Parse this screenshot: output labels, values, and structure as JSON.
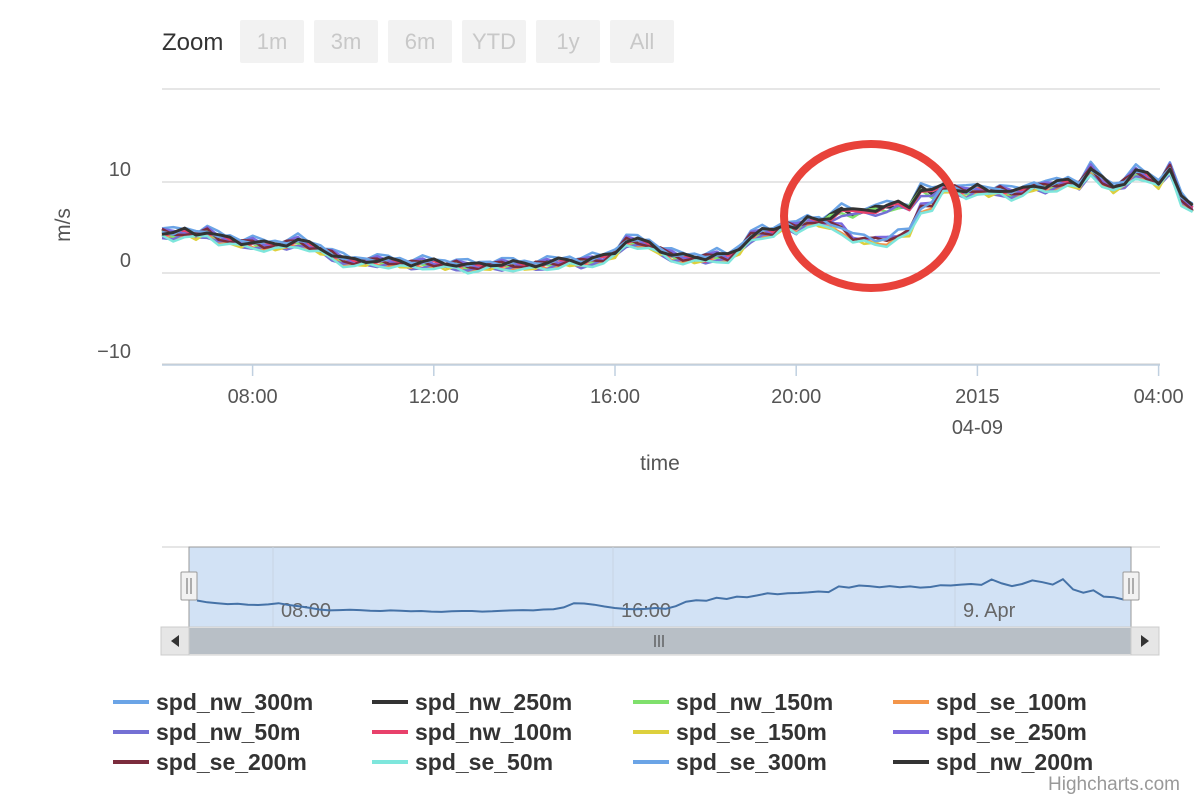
{
  "zoom": {
    "label": "Zoom",
    "buttons": [
      "1m",
      "3m",
      "6m",
      "YTD",
      "1y",
      "All"
    ]
  },
  "credits": "Highcharts.com",
  "colors": {
    "annotation_circle": "#e8423a",
    "navigator_fill": "#d2e2f5",
    "navigator_line": "#4572a7",
    "scrollbar_bg": "#b8bfc6"
  },
  "navigator": {
    "ticks": [
      "08:00",
      "16:00",
      "9. Apr"
    ],
    "series": [
      4.5,
      3.9,
      3.6,
      3.3,
      3.4,
      3.1,
      3.0,
      3.2,
      3.6,
      3.0,
      2.6,
      2.1,
      1.5,
      1.2,
      1.3,
      1.4,
      1.3,
      1.1,
      1.0,
      1.2,
      1.1,
      0.9,
      1.0,
      0.8,
      0.7,
      0.9,
      1.0,
      1.0,
      0.8,
      0.9,
      1.1,
      1.2,
      1.3,
      1.2,
      1.5,
      1.6,
      2.2,
      3.6,
      3.5,
      3.1,
      2.5,
      2.0,
      1.7,
      1.6,
      1.7,
      2.0,
      1.7,
      2.6,
      4.1,
      4.6,
      4.4,
      5.4,
      5.0,
      5.8,
      5.6,
      6.2,
      6.9,
      6.6,
      6.9,
      7.0,
      7.2,
      7.5,
      7.3,
      9.2,
      8.8,
      9.5,
      9.3,
      8.9,
      9.3,
      8.9,
      9.2,
      8.8,
      9.0,
      9.6,
      9.5,
      9.8,
      10.0,
      9.7,
      11.5,
      10.2,
      9.3,
      10.0,
      11.2,
      10.6,
      9.8,
      11.6,
      8.2,
      7.1,
      7.9,
      5.8,
      5.6,
      4.8
    ]
  },
  "chart_data": {
    "type": "line",
    "title": "",
    "xlabel": "time",
    "ylabel": "m/s",
    "ylim": [
      -10,
      13
    ],
    "y_ticks": [
      10,
      0,
      -10
    ],
    "x_ticks": [
      {
        "label": "08:00"
      },
      {
        "label": "12:00"
      },
      {
        "label": "16:00"
      },
      {
        "label": "20:00"
      },
      {
        "label": "2015",
        "sublabel": "04-09"
      },
      {
        "label": "04:00"
      }
    ],
    "x_range_hours": [
      "06:00",
      "04:10"
    ],
    "grid": true,
    "legend_position": "bottom",
    "annotation": "red circle around 21:00-23:30 where series diverge",
    "x_hours": [
      0,
      0.25,
      0.5,
      0.75,
      1,
      1.25,
      1.5,
      1.75,
      2,
      2.25,
      2.5,
      2.75,
      3,
      3.25,
      3.5,
      3.75,
      4,
      4.25,
      4.5,
      4.75,
      5,
      5.25,
      5.5,
      5.75,
      6,
      6.25,
      6.5,
      6.75,
      7,
      7.25,
      7.5,
      7.75,
      8,
      8.25,
      8.5,
      8.75,
      9,
      9.25,
      9.5,
      9.75,
      10,
      10.25,
      10.5,
      10.75,
      11,
      11.25,
      11.5,
      11.75,
      12,
      12.25,
      12.5,
      12.75,
      13,
      13.25,
      13.5,
      13.75,
      14,
      14.25,
      14.5,
      14.75,
      15,
      15.25,
      15.5,
      15.75,
      16,
      16.25,
      16.5,
      16.75,
      17,
      17.25,
      17.5,
      17.75,
      18,
      18.25,
      18.5,
      18.75,
      19,
      19.25,
      19.5,
      19.75,
      20,
      20.25,
      20.5,
      20.75,
      21,
      21.25,
      21.5,
      21.75,
      22,
      22.25,
      22.5,
      22.75
    ],
    "base_values": [
      4.5,
      4.3,
      4.5,
      4.2,
      4.6,
      3.9,
      3.6,
      3.3,
      3.4,
      3.1,
      3.0,
      3.2,
      3.6,
      3.0,
      2.6,
      2.1,
      1.5,
      1.2,
      1.3,
      1.4,
      1.3,
      1.1,
      1.0,
      1.2,
      1.1,
      0.9,
      1.0,
      0.8,
      0.7,
      0.9,
      1.0,
      1.0,
      0.8,
      0.9,
      1.1,
      1.2,
      1.3,
      1.2,
      1.5,
      1.6,
      2.2,
      3.6,
      3.5,
      3.1,
      2.5,
      2.0,
      1.7,
      1.6,
      1.7,
      2.0,
      1.7,
      2.6,
      4.1,
      4.6,
      4.4,
      5.4,
      5.0,
      5.8,
      5.6,
      6.2,
      6.9,
      6.6,
      6.9,
      7.0,
      7.2,
      7.5,
      7.3,
      9.2,
      8.8,
      9.5,
      9.3,
      8.9,
      9.3,
      8.9,
      9.2,
      8.8,
      9.0,
      9.6,
      9.5,
      9.8,
      10.0,
      9.7,
      11.5,
      10.2,
      9.3,
      10.0,
      11.2,
      10.6,
      9.8,
      11.6,
      8.2,
      7.1
    ],
    "series": [
      {
        "name": "spd_nw_300m",
        "color": "#6ba4e6",
        "offset": 0.4,
        "se_dip": false
      },
      {
        "name": "spd_nw_250m",
        "color": "#333333",
        "offset": 0.0,
        "se_dip": false
      },
      {
        "name": "spd_nw_150m",
        "color": "#7fe06c",
        "offset": -0.2,
        "se_dip": false
      },
      {
        "name": "spd_se_100m",
        "color": "#f3954a",
        "offset": -0.3,
        "se_dip": true
      },
      {
        "name": "spd_nw_50m",
        "color": "#7470d4",
        "offset": -0.4,
        "se_dip": false
      },
      {
        "name": "spd_nw_100m",
        "color": "#e8416b",
        "offset": -0.1,
        "se_dip": false
      },
      {
        "name": "spd_se_150m",
        "color": "#ddd03d",
        "offset": -0.2,
        "se_dip": true
      },
      {
        "name": "spd_se_250m",
        "color": "#7b68dd",
        "offset": 0.1,
        "se_dip": true
      },
      {
        "name": "spd_se_200m",
        "color": "#7b2c3d",
        "offset": 0.0,
        "se_dip": true
      },
      {
        "name": "spd_se_50m",
        "color": "#7ee6dc",
        "offset": -0.5,
        "se_dip": true
      },
      {
        "name": "spd_se_300m",
        "color": "#6ba4e6",
        "offset": 0.2,
        "se_dip": true
      },
      {
        "name": "spd_nw_200m",
        "color": "#333333",
        "offset": 0.1,
        "se_dip": false
      }
    ]
  }
}
